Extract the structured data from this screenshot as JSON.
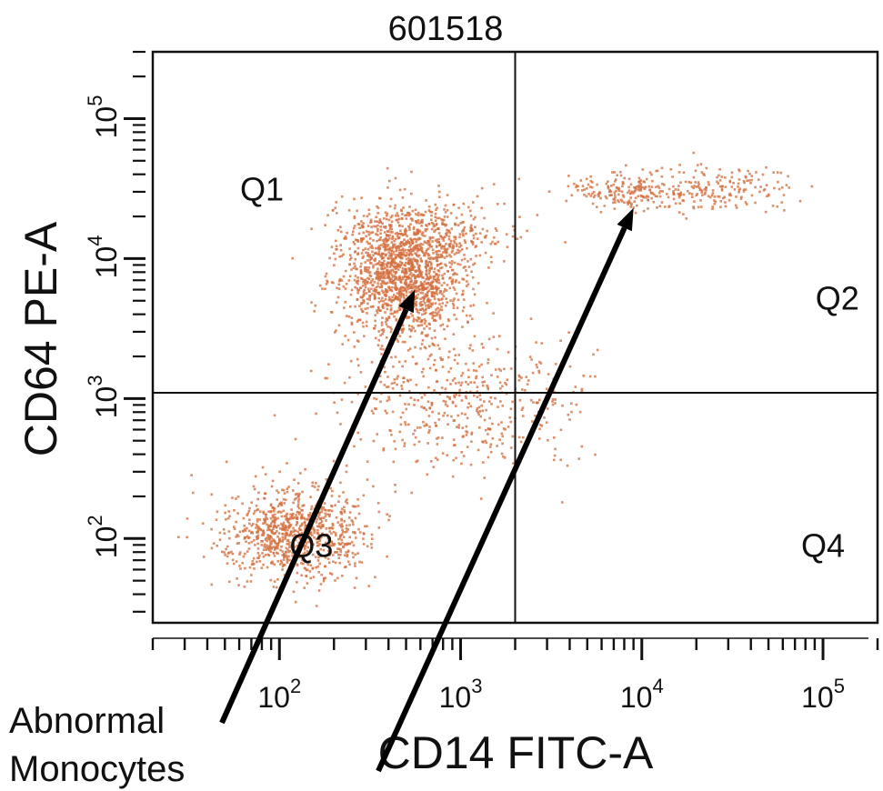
{
  "chart_data": {
    "type": "scatter",
    "title": "601518",
    "xlabel": "CD14 FITC-A",
    "ylabel": "CD64 PE-A",
    "x_scale": "log",
    "y_scale": "log",
    "xlim": [
      20,
      200000
    ],
    "ylim": [
      25,
      300000
    ],
    "x_ticks": [
      {
        "base": "10",
        "exp": "2",
        "value": 100
      },
      {
        "base": "10",
        "exp": "3",
        "value": 1000
      },
      {
        "base": "10",
        "exp": "4",
        "value": 10000
      },
      {
        "base": "10",
        "exp": "5",
        "value": 100000
      }
    ],
    "y_ticks": [
      {
        "base": "10",
        "exp": "2",
        "value": 100
      },
      {
        "base": "10",
        "exp": "3",
        "value": 1000
      },
      {
        "base": "10",
        "exp": "4",
        "value": 10000
      },
      {
        "base": "10",
        "exp": "5",
        "value": 100000
      }
    ],
    "gates": {
      "x": 2000,
      "y": 1100
    },
    "quadrants": [
      {
        "label": "Q1",
        "x": 80,
        "y": 30000
      },
      {
        "label": "Q2",
        "x": 120000,
        "y": 5000
      },
      {
        "label": "Q3",
        "x": 150,
        "y": 85
      },
      {
        "label": "Q4",
        "x": 100000,
        "y": 85
      }
    ],
    "point_color": "#d4703f",
    "populations": [
      {
        "center": [
          480,
          7500
        ],
        "spread": [
          0.17,
          0.22
        ],
        "count": 1500
      },
      {
        "center": [
          120,
          110
        ],
        "spread": [
          0.2,
          0.16
        ],
        "count": 900
      },
      {
        "center": [
          900,
          1000
        ],
        "spread": [
          0.35,
          0.25
        ],
        "count": 500
      },
      {
        "center": [
          600,
          16000
        ],
        "spread": [
          0.25,
          0.12
        ],
        "count": 300
      },
      {
        "center": [
          8000,
          30000
        ],
        "spread": [
          0.13,
          0.06
        ],
        "count": 180
      },
      {
        "center": [
          25000,
          32000
        ],
        "spread": [
          0.22,
          0.08
        ],
        "count": 200
      }
    ],
    "annotation": {
      "text_lines": [
        "Abnormal",
        "Monocytes"
      ],
      "arrow_targets": [
        [
          560,
          6000
        ],
        [
          9000,
          23000
        ]
      ]
    }
  }
}
